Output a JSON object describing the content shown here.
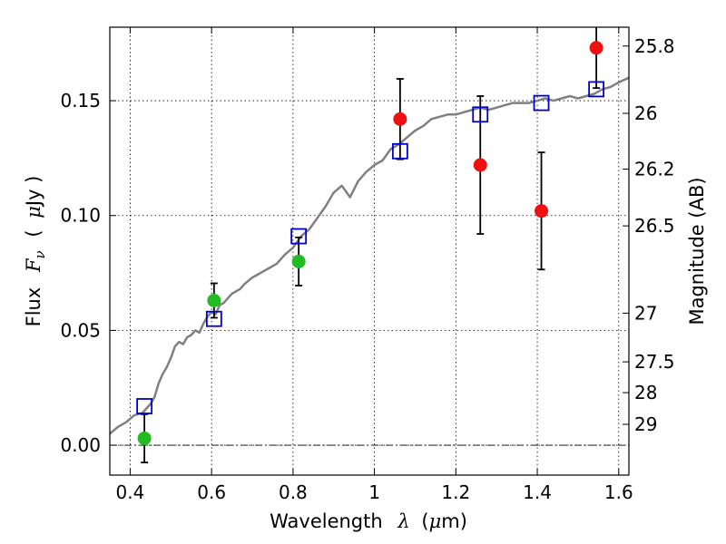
{
  "chart_data": {
    "type": "scatter",
    "xlabel": "Wavelength",
    "xlabel_symbol": "λ",
    "xlabel_unit_open": "(",
    "xlabel_unit_mu": "μ",
    "xlabel_unit_rest": "m)",
    "ylabel": "Flux",
    "ylabel_symbol": "F",
    "ylabel_subscript": "ν",
    "ylabel_unit_open": "(",
    "ylabel_unit_mu": "μ",
    "ylabel_unit_rest": "Jy )",
    "y2label": "Magnitude (AB)",
    "xlim": [
      0.35,
      1.625
    ],
    "ylim": [
      -0.013,
      0.182
    ],
    "grid": true,
    "x_ticks": [
      {
        "value": 0.4,
        "label": "0.4"
      },
      {
        "value": 0.6,
        "label": "0.6"
      },
      {
        "value": 0.8,
        "label": "0.8"
      },
      {
        "value": 1.0,
        "label": "1"
      },
      {
        "value": 1.2,
        "label": "1.2"
      },
      {
        "value": 1.4,
        "label": "1.4"
      },
      {
        "value": 1.6,
        "label": "1.6"
      }
    ],
    "y_ticks": [
      {
        "value": 0.0,
        "label": "0.00"
      },
      {
        "value": 0.05,
        "label": "0.05"
      },
      {
        "value": 0.1,
        "label": "0.10"
      },
      {
        "value": 0.15,
        "label": "0.15"
      }
    ],
    "y2_ticks": [
      {
        "flux": 0.1738,
        "label": "25.8"
      },
      {
        "flux": 0.1445,
        "label": "26"
      },
      {
        "flux": 0.1202,
        "label": "26.2"
      },
      {
        "flux": 0.0955,
        "label": "26.5"
      },
      {
        "flux": 0.0575,
        "label": "27"
      },
      {
        "flux": 0.0363,
        "label": "27.5"
      },
      {
        "flux": 0.0229,
        "label": "28"
      },
      {
        "flux": 0.0091,
        "label": "29"
      }
    ],
    "template_line": {
      "color": "#808080",
      "x": [
        0.35,
        0.37,
        0.39,
        0.41,
        0.43,
        0.44,
        0.45,
        0.46,
        0.47,
        0.48,
        0.49,
        0.5,
        0.51,
        0.52,
        0.53,
        0.54,
        0.55,
        0.56,
        0.57,
        0.58,
        0.59,
        0.6,
        0.61,
        0.62,
        0.63,
        0.64,
        0.65,
        0.66,
        0.67,
        0.68,
        0.7,
        0.72,
        0.74,
        0.76,
        0.78,
        0.8,
        0.82,
        0.84,
        0.86,
        0.88,
        0.9,
        0.92,
        0.94,
        0.96,
        0.98,
        1.0,
        1.02,
        1.04,
        1.06,
        1.08,
        1.1,
        1.12,
        1.14,
        1.16,
        1.18,
        1.2,
        1.22,
        1.24,
        1.26,
        1.28,
        1.3,
        1.32,
        1.34,
        1.36,
        1.38,
        1.4,
        1.42,
        1.44,
        1.46,
        1.48,
        1.5,
        1.52,
        1.54,
        1.56,
        1.58,
        1.6,
        1.625
      ],
      "y": [
        0.005,
        0.008,
        0.01,
        0.013,
        0.014,
        0.016,
        0.018,
        0.021,
        0.027,
        0.031,
        0.034,
        0.038,
        0.043,
        0.045,
        0.044,
        0.047,
        0.048,
        0.05,
        0.049,
        0.053,
        0.056,
        0.058,
        0.057,
        0.061,
        0.062,
        0.064,
        0.066,
        0.067,
        0.068,
        0.07,
        0.073,
        0.075,
        0.077,
        0.079,
        0.083,
        0.086,
        0.091,
        0.094,
        0.099,
        0.104,
        0.11,
        0.113,
        0.108,
        0.115,
        0.119,
        0.122,
        0.124,
        0.129,
        0.131,
        0.134,
        0.137,
        0.139,
        0.142,
        0.143,
        0.144,
        0.144,
        0.145,
        0.146,
        0.147,
        0.146,
        0.147,
        0.148,
        0.149,
        0.149,
        0.149,
        0.15,
        0.151,
        0.15,
        0.151,
        0.152,
        0.151,
        0.152,
        0.153,
        0.155,
        0.156,
        0.158,
        0.16
      ]
    },
    "series": [
      {
        "marker": "square",
        "color": "#0000cc",
        "points": [
          {
            "x": 0.435,
            "y": 0.017
          },
          {
            "x": 0.606,
            "y": 0.055
          },
          {
            "x": 0.814,
            "y": 0.091
          },
          {
            "x": 1.063,
            "y": 0.128
          },
          {
            "x": 1.26,
            "y": 0.144
          },
          {
            "x": 1.41,
            "y": 0.149
          },
          {
            "x": 1.545,
            "y": 0.155
          }
        ]
      },
      {
        "marker": "circle",
        "color": "#22bb22",
        "points": [
          {
            "x": 0.435,
            "y": 0.003,
            "err": 0.0105
          },
          {
            "x": 0.606,
            "y": 0.063,
            "err": 0.0075
          },
          {
            "x": 0.814,
            "y": 0.08,
            "err": 0.0105
          }
        ]
      },
      {
        "marker": "circle",
        "color": "#ee1111",
        "points": [
          {
            "x": 1.063,
            "y": 0.142,
            "err": 0.0175
          },
          {
            "x": 1.26,
            "y": 0.122,
            "err": 0.03
          },
          {
            "x": 1.41,
            "y": 0.102,
            "err": 0.0255
          },
          {
            "x": 1.545,
            "y": 0.173,
            "err": 0.0175
          }
        ]
      }
    ]
  }
}
